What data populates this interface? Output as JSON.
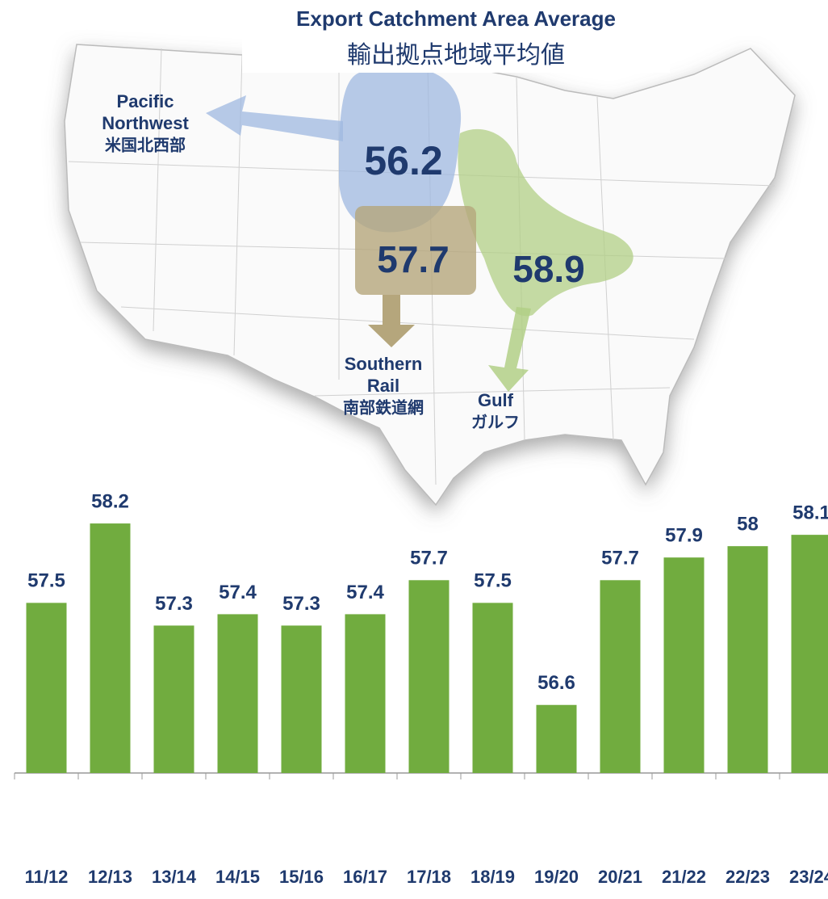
{
  "map": {
    "title": "Export Catchment Area Average",
    "subtitle": "輸出拠点地域平均値",
    "regions": [
      {
        "name": [
          "Pacific",
          "Northwest"
        ],
        "name_ja": "米国北西部",
        "value": 56.2
      },
      {
        "name": [
          "Southern",
          "Rail"
        ],
        "name_ja": "南部鉄道網",
        "value": 57.7
      },
      {
        "name": [
          "Gulf"
        ],
        "name_ja": "ガルフ",
        "value": 58.9
      }
    ]
  },
  "chart_data": {
    "type": "bar",
    "categories": [
      "11/12",
      "12/13",
      "13/14",
      "14/15",
      "15/16",
      "16/17",
      "17/18",
      "18/19",
      "19/20",
      "20/21",
      "21/22",
      "22/23",
      "23/24"
    ],
    "values": [
      57.5,
      58.2,
      57.3,
      57.4,
      57.3,
      57.4,
      57.7,
      57.5,
      56.6,
      57.7,
      57.9,
      58.0,
      58.1
    ],
    "color": "#71ac3f",
    "ylim": [
      56.0,
      58.4
    ]
  }
}
